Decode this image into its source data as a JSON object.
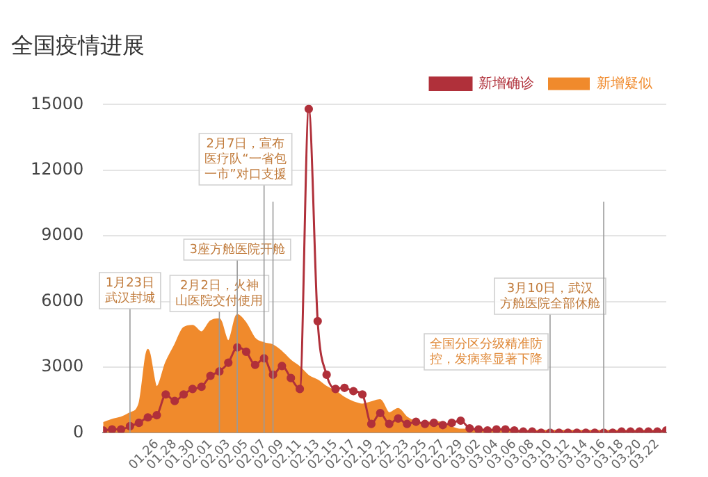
{
  "chart_data": {
    "type": "area",
    "title": "全国疫情进展",
    "x": [
      "--01-20",
      "--01-21",
      "--01-22",
      "--01-23",
      "--01-24",
      "--01-25",
      "--01-26",
      "--01-27",
      "--01-28",
      "--01-29",
      "--01-30",
      "--01-31",
      "--02-01",
      "--02-02",
      "--02-03",
      "--02-04",
      "--02-05",
      "--02-06",
      "--02-07",
      "--02-08",
      "--02-09",
      "--02-10",
      "--02-11",
      "--02-12",
      "--02-13",
      "--02-14",
      "--02-15",
      "--02-16",
      "--02-17",
      "--02-18",
      "--02-19",
      "--02-20",
      "--02-21",
      "--02-22",
      "--02-23",
      "--02-24",
      "--02-25",
      "--02-26",
      "--02-27",
      "--02-28",
      "--02-29",
      "--03-01",
      "--03-02",
      "--03-03",
      "--03-04",
      "--03-05",
      "--03-06",
      "--03-07",
      "--03-08",
      "--03-09",
      "--03-10",
      "--03-11",
      "--03-12",
      "--03-13",
      "--03-14",
      "--03-15",
      "--03-16",
      "--03-17",
      "--03-18",
      "--03-19",
      "--03-20",
      "--03-21",
      "--03-22",
      "--03-23"
    ],
    "series": [
      {
        "name": "新增确诊",
        "type": "line",
        "color": "#b0303a",
        "marker": "circle",
        "values": [
          100,
          150,
          150,
          300,
          450,
          700,
          800,
          1750,
          1450,
          1750,
          2000,
          2100,
          2600,
          2800,
          3200,
          3900,
          3700,
          3100,
          3400,
          2650,
          3050,
          2500,
          2000,
          14800,
          5100,
          2650,
          2000,
          2050,
          1900,
          1750,
          400,
          900,
          400,
          650,
          400,
          500,
          400,
          450,
          350,
          450,
          550,
          200,
          150,
          100,
          150,
          150,
          100,
          50,
          50,
          0,
          0,
          0,
          0,
          0,
          0,
          0,
          0,
          0,
          50,
          50,
          50,
          50,
          50,
          100
        ]
      },
      {
        "name": "新增疑似",
        "color": "#f08a2c",
        "values": [
          450,
          600,
          700,
          900,
          1300,
          3800,
          2100,
          3200,
          4000,
          4800,
          4900,
          4600,
          5100,
          5200,
          4200,
          5400,
          5000,
          4300,
          4100,
          4000,
          3700,
          3300,
          3000,
          2600,
          2400,
          2100,
          1900,
          1600,
          1400,
          1300,
          1400,
          1500,
          900,
          1100,
          700,
          500,
          450,
          500,
          450,
          250,
          150,
          150,
          150,
          150,
          150,
          100,
          100,
          100,
          100,
          100,
          100,
          100,
          100,
          100,
          100,
          100,
          100,
          100,
          100,
          100,
          100,
          100,
          100,
          100
        ]
      }
    ],
    "xlim": [
      "--01-20",
      "--03-23"
    ],
    "xticks": [
      {
        "value": "--01-26",
        "label": "01.26"
      },
      {
        "value": "--01-28",
        "label": "01.28"
      },
      {
        "value": "--01-30",
        "label": "01.30"
      },
      {
        "value": "--02-01",
        "label": "02.01"
      },
      {
        "value": "--02-03",
        "label": "02.03"
      },
      {
        "value": "--02-05",
        "label": "02.05"
      },
      {
        "value": "--02-07",
        "label": "02.07"
      },
      {
        "value": "--02-09",
        "label": "02.09"
      },
      {
        "value": "--02-11",
        "label": "02.11"
      },
      {
        "value": "--02-13",
        "label": "02.13"
      },
      {
        "value": "--02-15",
        "label": "02.15"
      },
      {
        "value": "--02-17",
        "label": "02.17"
      },
      {
        "value": "--02-19",
        "label": "02.19"
      },
      {
        "value": "--02-21",
        "label": "02.21"
      },
      {
        "value": "--02-23",
        "label": "02.23"
      },
      {
        "value": "--02-25",
        "label": "02.25"
      },
      {
        "value": "--02-27",
        "label": "02.27"
      },
      {
        "value": "--02-29",
        "label": "02.29"
      },
      {
        "value": "--03-02",
        "label": "03.02"
      },
      {
        "value": "--03-04",
        "label": "03.04"
      },
      {
        "value": "--03-06",
        "label": "03.06"
      },
      {
        "value": "--03-08",
        "label": "03.08"
      },
      {
        "value": "--03-10",
        "label": "03.10"
      },
      {
        "value": "--03-12",
        "label": "03.12"
      },
      {
        "value": "--03-14",
        "label": "03.14"
      },
      {
        "value": "--03-16",
        "label": "03.16"
      },
      {
        "value": "--03-18",
        "label": "03.18"
      },
      {
        "value": "--03-20",
        "label": "03.20"
      },
      {
        "value": "--03-22",
        "label": "03.22"
      }
    ],
    "ylim": [
      0,
      15000
    ],
    "yticks": [
      0,
      3000,
      6000,
      9000,
      12000,
      15000
    ],
    "grid": "y",
    "legend": "top right",
    "ref_lines": [
      {
        "axis": "x",
        "value": "--01-23",
        "label": "1月23日武汉封城"
      },
      {
        "axis": "x",
        "value": "--02-02",
        "label": "2月2日，火神山医院交付使用"
      },
      {
        "axis": "x",
        "value": "--02-04",
        "label": "3座方舱医院开舱"
      },
      {
        "axis": "x",
        "value": "--02-07",
        "label": "2月7日，宣布医疗队“一省包一市”对口支援"
      },
      {
        "axis": "x",
        "value": "--02-08",
        "label": null
      },
      {
        "axis": "x",
        "value": "--03-10",
        "label": "3月10日，武汉方舱医院全部休舱"
      },
      {
        "axis": "x",
        "value": "--03-16",
        "label": null
      }
    ],
    "annotations": [
      "全国分区分级精准防控，发病率显著下降"
    ]
  }
}
